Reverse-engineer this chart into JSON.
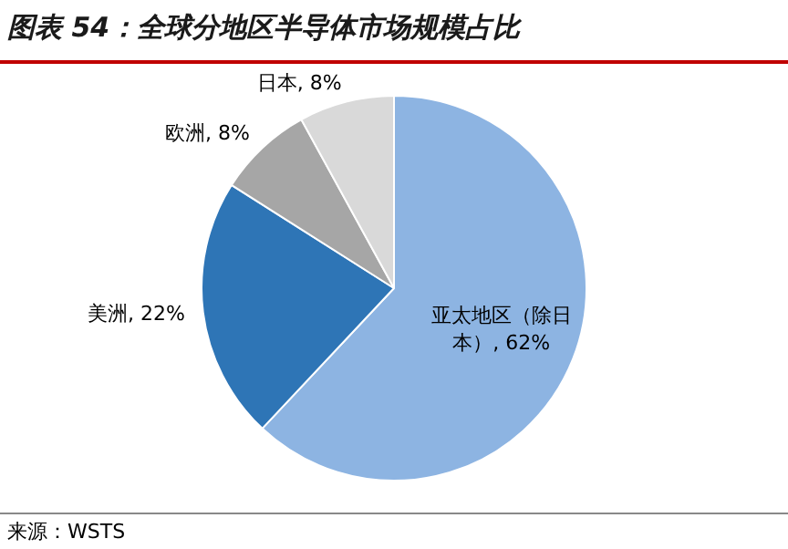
{
  "chart_data": {
    "type": "pie",
    "title": "图表 54：全球分地区半导体市场规模占比",
    "categories": [
      "亚太地区（除日本）",
      "美洲",
      "欧洲",
      "日本"
    ],
    "values": [
      62,
      22,
      8,
      8
    ],
    "value_labels": [
      "62%",
      "22%",
      "8%",
      "8%"
    ],
    "colors": [
      "#8db4e2",
      "#2e75b6",
      "#a6a6a6",
      "#d9d9d9"
    ],
    "legend": false,
    "annotations": [
      "来源：WSTS"
    ]
  }
}
